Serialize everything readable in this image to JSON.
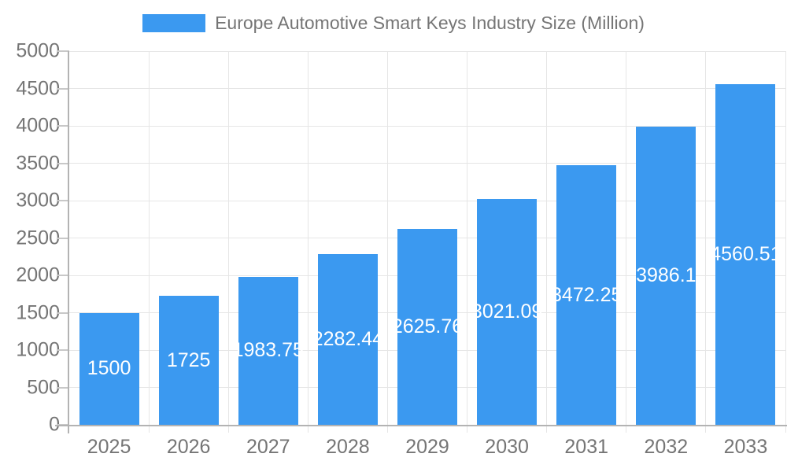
{
  "chart_data": {
    "type": "bar",
    "title": "Europe Automotive Smart Keys Industry Size (Million)",
    "categories": [
      "2025",
      "2026",
      "2027",
      "2028",
      "2029",
      "2030",
      "2031",
      "2032",
      "2033"
    ],
    "values": [
      1500,
      1725,
      1983.75,
      2282.44,
      2625.76,
      3021.09,
      3472.25,
      3986.1,
      4560.51
    ],
    "value_labels": [
      "1500",
      "1725",
      "1983.75",
      "2282.44",
      "2625.76",
      "3021.09",
      "3472.25",
      "3986.1",
      "4560.51"
    ],
    "xlabel": "",
    "ylabel": "",
    "ylim": [
      0,
      5000
    ],
    "ytick_step": 500,
    "ytick_labels": [
      "0",
      "500",
      "1000",
      "1500",
      "2000",
      "2500",
      "3000",
      "3500",
      "4000",
      "4500",
      "5000"
    ],
    "grid": true,
    "legend": {
      "position": "top",
      "swatch_color": "#3B99F0"
    },
    "colors": {
      "bar": "#3B99F0",
      "value_text": "#ffffff",
      "axis_text": "#757575",
      "gridline": "#e6e6e6",
      "axis_line": "#b3b3b3"
    }
  }
}
